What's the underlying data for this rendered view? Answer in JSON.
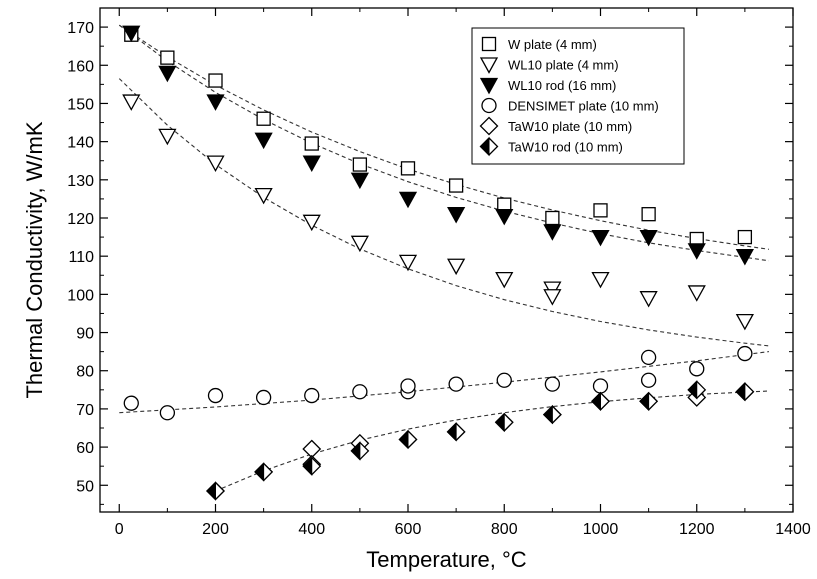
{
  "chart_data": {
    "type": "scatter",
    "xlabel": "Temperature, °C",
    "ylabel": "Thermal Conductivity, W/mK",
    "xlim": [
      -40,
      1400
    ],
    "ylim": [
      43,
      175
    ],
    "xticks": [
      0,
      200,
      400,
      600,
      800,
      1000,
      1200,
      1400
    ],
    "yticks": [
      50,
      60,
      70,
      80,
      90,
      100,
      110,
      120,
      130,
      140,
      150,
      160,
      170
    ],
    "x_minor_step": 100,
    "y_minor_step": 5,
    "grid": false,
    "legend_position": "top-right",
    "series": [
      {
        "name": "W plate (4 mm)",
        "marker": "square-open",
        "points": [
          [
            25,
            168
          ],
          [
            100,
            162
          ],
          [
            200,
            156
          ],
          [
            300,
            146
          ],
          [
            400,
            139.5
          ],
          [
            500,
            134
          ],
          [
            600,
            133
          ],
          [
            700,
            128.5
          ],
          [
            800,
            123.5
          ],
          [
            900,
            120
          ],
          [
            1000,
            122
          ],
          [
            1100,
            121
          ],
          [
            1200,
            114.5
          ],
          [
            1300,
            115
          ]
        ]
      },
      {
        "name": "WL10 plate (4 mm)",
        "marker": "triangle-down-open",
        "points": [
          [
            25,
            150.5
          ],
          [
            100,
            141.5
          ],
          [
            200,
            134.5
          ],
          [
            300,
            126
          ],
          [
            400,
            119
          ],
          [
            500,
            113.5
          ],
          [
            600,
            108.5
          ],
          [
            700,
            107.5
          ],
          [
            800,
            104
          ],
          [
            900,
            101.5
          ],
          [
            900,
            99.5
          ],
          [
            1000,
            104
          ],
          [
            1100,
            99
          ],
          [
            1200,
            100.5
          ],
          [
            1300,
            93
          ]
        ]
      },
      {
        "name": "WL10 rod (16 mm)",
        "marker": "triangle-down-filled",
        "points": [
          [
            25,
            168.5
          ],
          [
            100,
            158
          ],
          [
            200,
            150.5
          ],
          [
            300,
            140.5
          ],
          [
            400,
            134.5
          ],
          [
            500,
            130
          ],
          [
            600,
            125
          ],
          [
            700,
            121
          ],
          [
            800,
            120.5
          ],
          [
            900,
            116.5
          ],
          [
            1000,
            115
          ],
          [
            1100,
            115
          ],
          [
            1200,
            111.5
          ],
          [
            1300,
            110
          ]
        ]
      },
      {
        "name": "DENSIMET plate (10 mm)",
        "marker": "circle-open",
        "points": [
          [
            25,
            71.5
          ],
          [
            100,
            69
          ],
          [
            200,
            73.5
          ],
          [
            300,
            73
          ],
          [
            400,
            73.5
          ],
          [
            500,
            74.5
          ],
          [
            600,
            74.5
          ],
          [
            600,
            76
          ],
          [
            700,
            76.5
          ],
          [
            800,
            77.5
          ],
          [
            900,
            76.5
          ],
          [
            1000,
            76
          ],
          [
            1100,
            83.5
          ],
          [
            1100,
            77.5
          ],
          [
            1200,
            80.5
          ],
          [
            1300,
            84.5
          ]
        ]
      },
      {
        "name": "TaW10 plate (10 mm)",
        "marker": "diamond-open",
        "points": [
          [
            200,
            48.5
          ],
          [
            300,
            53.5
          ],
          [
            400,
            59.5
          ],
          [
            400,
            55.5
          ],
          [
            500,
            61
          ],
          [
            600,
            62
          ],
          [
            700,
            64
          ],
          [
            800,
            66.5
          ],
          [
            900,
            68.5
          ],
          [
            1000,
            72
          ],
          [
            1100,
            72
          ],
          [
            1200,
            73
          ],
          [
            1300,
            74.5
          ]
        ]
      },
      {
        "name": "TaW10 rod (10 mm)",
        "marker": "diamond-filled",
        "points": [
          [
            200,
            48.5
          ],
          [
            300,
            53.5
          ],
          [
            400,
            55
          ],
          [
            500,
            59
          ],
          [
            600,
            62
          ],
          [
            700,
            64
          ],
          [
            800,
            66.5
          ],
          [
            900,
            68.5
          ],
          [
            1000,
            72
          ],
          [
            1100,
            72
          ],
          [
            1200,
            75
          ],
          [
            1300,
            74.5
          ]
        ]
      }
    ],
    "fit_curves": [
      {
        "points": [
          [
            0,
            170.5
          ],
          [
            100,
            162.2
          ],
          [
            200,
            154.8
          ],
          [
            300,
            148.3
          ],
          [
            400,
            142.5
          ],
          [
            500,
            137.4
          ],
          [
            600,
            132.8
          ],
          [
            700,
            128.8
          ],
          [
            800,
            125.2
          ],
          [
            900,
            122.1
          ],
          [
            1000,
            119.3
          ],
          [
            1100,
            116.8
          ],
          [
            1200,
            114.6
          ],
          [
            1300,
            112.7
          ],
          [
            1350,
            111.8
          ]
        ]
      },
      {
        "points": [
          [
            0,
            170.5
          ],
          [
            100,
            161.1
          ],
          [
            200,
            152.9
          ],
          [
            300,
            145.8
          ],
          [
            400,
            139.6
          ],
          [
            500,
            134.2
          ],
          [
            600,
            129.5
          ],
          [
            700,
            125.4
          ],
          [
            800,
            121.8
          ],
          [
            900,
            118.7
          ],
          [
            1000,
            115.9
          ],
          [
            1100,
            113.5
          ],
          [
            1200,
            111.5
          ],
          [
            1300,
            109.7
          ],
          [
            1350,
            108.8
          ]
        ]
      },
      {
        "points": [
          [
            0,
            156.5
          ],
          [
            100,
            144.3
          ],
          [
            200,
            134
          ],
          [
            300,
            125.4
          ],
          [
            400,
            118.1
          ],
          [
            500,
            111.9
          ],
          [
            600,
            106.7
          ],
          [
            700,
            102.3
          ],
          [
            800,
            98.6
          ],
          [
            900,
            95.5
          ],
          [
            1000,
            92.9
          ],
          [
            1100,
            90.7
          ],
          [
            1200,
            88.8
          ],
          [
            1300,
            87.2
          ],
          [
            1350,
            86.5
          ]
        ]
      },
      {
        "points": [
          [
            0,
            69
          ],
          [
            200,
            70.5
          ],
          [
            400,
            72.3
          ],
          [
            600,
            74.5
          ],
          [
            800,
            77
          ],
          [
            1000,
            79.7
          ],
          [
            1200,
            82.6
          ],
          [
            1350,
            85
          ]
        ]
      },
      {
        "points": [
          [
            200,
            48.5
          ],
          [
            300,
            53.8
          ],
          [
            400,
            58.2
          ],
          [
            500,
            61.8
          ],
          [
            600,
            64.7
          ],
          [
            700,
            67.1
          ],
          [
            800,
            69
          ],
          [
            900,
            70.6
          ],
          [
            1000,
            71.9
          ],
          [
            1100,
            72.9
          ],
          [
            1200,
            73.8
          ],
          [
            1300,
            74.4
          ],
          [
            1350,
            74.7
          ]
        ]
      }
    ]
  }
}
